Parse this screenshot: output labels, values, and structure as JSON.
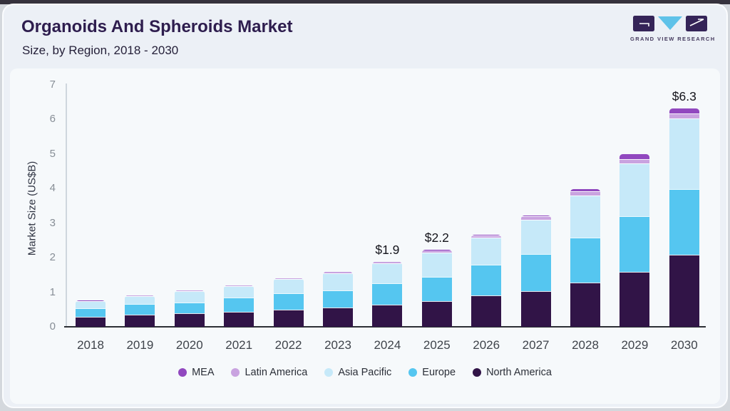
{
  "page": {
    "title": "Organoids And Spheroids Market",
    "subtitle": "Size, by Region, 2018 - 2030",
    "brand": {
      "name": "GRAND VIEW RESEARCH"
    }
  },
  "chart_data": {
    "type": "bar",
    "stacked": true,
    "title": "Organoids And Spheroids Market",
    "subtitle": "Size, by Region, 2018 - 2030",
    "ylabel": "Market Size (US$B)",
    "xlabel": "",
    "ylim": [
      0,
      7
    ],
    "yticks": [
      0,
      1,
      2,
      3,
      4,
      5,
      6,
      7
    ],
    "grid": false,
    "legend_position": "bottom",
    "categories": [
      "2018",
      "2019",
      "2020",
      "2021",
      "2022",
      "2023",
      "2024",
      "2025",
      "2026",
      "2027",
      "2028",
      "2029",
      "2030"
    ],
    "stack_order": "bottom_to_top",
    "series": [
      {
        "name": "North America",
        "color": "#311447",
        "values": [
          0.29,
          0.35,
          0.39,
          0.43,
          0.49,
          0.55,
          0.63,
          0.75,
          0.91,
          1.03,
          1.27,
          1.58,
          2.08
        ]
      },
      {
        "name": "Europe",
        "color": "#55c6f0",
        "values": [
          0.25,
          0.3,
          0.31,
          0.41,
          0.49,
          0.51,
          0.62,
          0.7,
          0.89,
          1.07,
          1.31,
          1.61,
          1.9
        ]
      },
      {
        "name": "Asia Pacific",
        "color": "#c6e9f9",
        "values": [
          0.2,
          0.24,
          0.33,
          0.34,
          0.4,
          0.49,
          0.58,
          0.7,
          0.78,
          1.0,
          1.21,
          1.54,
          2.05
        ]
      },
      {
        "name": "Latin America",
        "color": "#c9a3e0",
        "values": [
          0.01,
          0.015,
          0.02,
          0.02,
          0.02,
          0.03,
          0.04,
          0.05,
          0.07,
          0.1,
          0.14,
          0.13,
          0.15
        ]
      },
      {
        "name": "MEA",
        "color": "#9148bf",
        "values": [
          0.005,
          0.005,
          0.005,
          0.005,
          0.005,
          0.01,
          0.01,
          0.02,
          0.02,
          0.03,
          0.05,
          0.14,
          0.14
        ]
      }
    ],
    "legend_order": [
      "MEA",
      "Latin America",
      "Asia Pacific",
      "Europe",
      "North America"
    ],
    "annotations": [
      {
        "category": "2024",
        "label": "$1.9"
      },
      {
        "category": "2025",
        "label": "$2.2"
      },
      {
        "category": "2030",
        "label": "$6.3"
      }
    ]
  }
}
